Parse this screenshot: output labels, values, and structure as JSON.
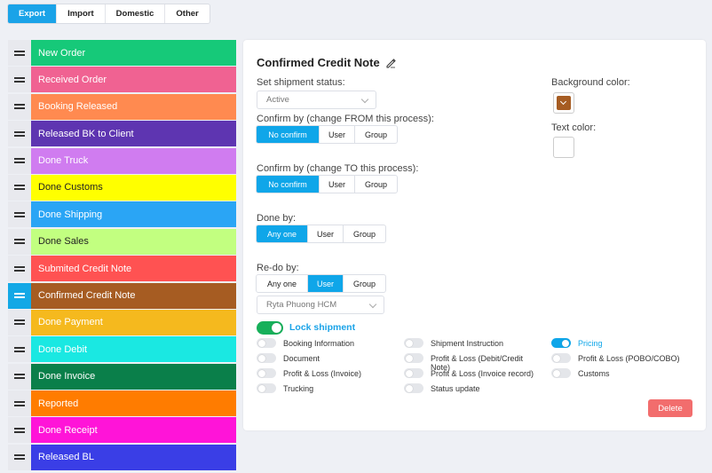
{
  "top_tabs": [
    {
      "label": "Export",
      "active": true
    },
    {
      "label": "Import",
      "active": false
    },
    {
      "label": "Domestic",
      "active": false
    },
    {
      "label": "Other",
      "active": false
    }
  ],
  "processes": [
    {
      "label": "New Order",
      "color": "#16c979",
      "dark": false,
      "active": false
    },
    {
      "label": "Received Order",
      "color": "#f06292",
      "dark": false,
      "active": false
    },
    {
      "label": "Booking Released",
      "color": "#ff8a50",
      "dark": false,
      "active": false
    },
    {
      "label": "Released BK to Client",
      "color": "#5e35b1",
      "dark": false,
      "active": false
    },
    {
      "label": "Done Truck",
      "color": "#d07cf0",
      "dark": false,
      "active": false
    },
    {
      "label": "Done Customs",
      "color": "#ffff00",
      "dark": true,
      "active": false
    },
    {
      "label": "Done Shipping",
      "color": "#2aa5f5",
      "dark": false,
      "active": false
    },
    {
      "label": "Done Sales",
      "color": "#c2ff80",
      "dark": true,
      "active": false
    },
    {
      "label": "Submited Credit Note",
      "color": "#ff5252",
      "dark": false,
      "active": false
    },
    {
      "label": "Confirmed Credit Note",
      "color": "#a65c22",
      "dark": false,
      "active": true
    },
    {
      "label": "Done Payment",
      "color": "#f5b91e",
      "dark": false,
      "active": false
    },
    {
      "label": "Done Debit",
      "color": "#1ae8e2",
      "dark": false,
      "active": false
    },
    {
      "label": "Done Invoice",
      "color": "#0a7f4a",
      "dark": false,
      "active": false
    },
    {
      "label": "Reported",
      "color": "#ff7c00",
      "dark": false,
      "active": false
    },
    {
      "label": "Done Receipt",
      "color": "#ff14d8",
      "dark": false,
      "active": false
    },
    {
      "label": "Released BL",
      "color": "#3a3ee6",
      "dark": false,
      "active": false
    }
  ],
  "panel": {
    "title": "Confirmed Credit Note",
    "shipment_status_label": "Set shipment status:",
    "shipment_status_value": "Active",
    "confirm_from_label": "Confirm by (change FROM this process):",
    "confirm_from_options": [
      "No confirm",
      "User",
      "Group"
    ],
    "confirm_from_selected": 0,
    "confirm_to_label": "Confirm by (change TO this process):",
    "confirm_to_options": [
      "No confirm",
      "User",
      "Group"
    ],
    "confirm_to_selected": 0,
    "done_by_label": "Done by:",
    "done_by_options": [
      "Any one",
      "User",
      "Group"
    ],
    "done_by_selected": 0,
    "redo_by_label": "Re-do by:",
    "redo_by_options": [
      "Any one",
      "User",
      "Group"
    ],
    "redo_by_selected": 1,
    "redo_user_value": "Ryta Phuong HCM",
    "background_color_label": "Background color:",
    "background_color": "#a65c22",
    "text_color_label": "Text color:",
    "text_color": "#ffffff",
    "lock_shipment_label": "Lock shipment",
    "lock_shipment_on": true,
    "permissions": [
      {
        "label": "Booking Information",
        "on": false
      },
      {
        "label": "Document",
        "on": false
      },
      {
        "label": "Profit & Loss (Invoice)",
        "on": false
      },
      {
        "label": "Trucking",
        "on": false
      },
      {
        "label": "Shipment Instruction",
        "on": false
      },
      {
        "label": "Profit & Loss (Debit/Credit Note)",
        "on": false
      },
      {
        "label": "Profit & Loss (Invoice record)",
        "on": false
      },
      {
        "label": "Status update",
        "on": false
      },
      {
        "label": "Pricing",
        "on": true
      },
      {
        "label": "Profit & Loss (POBO/COBO)",
        "on": false
      },
      {
        "label": "Customs",
        "on": false
      }
    ],
    "delete_label": "Delete"
  }
}
